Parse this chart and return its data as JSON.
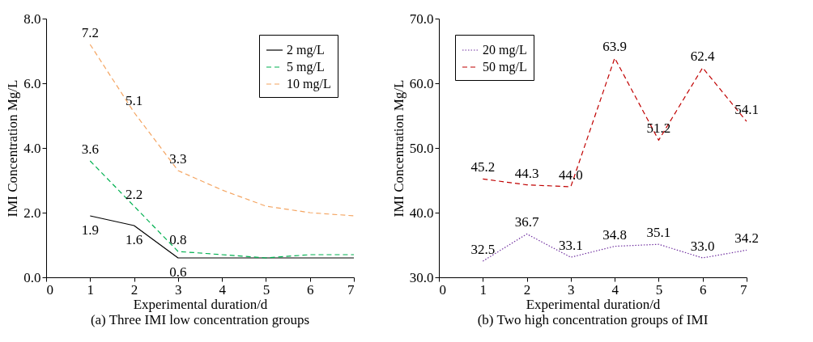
{
  "chart_data": [
    {
      "type": "line",
      "title": "(a) Three IMI low concentration groups",
      "xlabel": "Experimental duration/d",
      "ylabel": "IMI Concentration Mg/L",
      "x": [
        1,
        2,
        3,
        4,
        5,
        6,
        7
      ],
      "series": [
        {
          "name": "2 mg/L",
          "color": "#000000",
          "line_style": "solid",
          "values": [
            1.9,
            1.6,
            0.6,
            0.6,
            0.6,
            0.6,
            0.6
          ],
          "value_labels": [
            "1.9",
            "1.6",
            "0.6",
            null,
            null,
            null,
            null
          ]
        },
        {
          "name": "5 mg/L",
          "color": "#00b050",
          "line_style": "dashed",
          "values": [
            3.6,
            2.2,
            0.8,
            0.7,
            0.6,
            0.7,
            0.7
          ],
          "value_labels": [
            "3.6",
            "2.2",
            "0.8",
            null,
            null,
            null,
            null
          ]
        },
        {
          "name": "10 mg/L",
          "color": "#f4a460",
          "line_style": "dashed",
          "values": [
            7.2,
            5.1,
            3.3,
            2.7,
            2.2,
            2.0,
            1.9
          ],
          "value_labels": [
            "7.2",
            "5.1",
            "3.3",
            null,
            null,
            null,
            null
          ]
        }
      ],
      "xlim": [
        0,
        7
      ],
      "xticks": [
        0,
        1,
        2,
        3,
        4,
        5,
        6,
        7
      ],
      "ylim": [
        0,
        8
      ],
      "yticks": [
        {
          "value": 0,
          "label": "0.0"
        },
        {
          "value": 2,
          "label": "2.0"
        },
        {
          "value": 4,
          "label": "4.0"
        },
        {
          "value": 6,
          "label": "6.0"
        },
        {
          "value": 8,
          "label": "8.0"
        }
      ],
      "legend": "top right",
      "grid": false,
      "marker": "none"
    },
    {
      "type": "line",
      "title": "(b) Two high concentration groups of IMI",
      "xlabel": "Experimental duration/d",
      "ylabel": "IMI Concentration Mg/L",
      "x": [
        1,
        2,
        3,
        4,
        5,
        6,
        7
      ],
      "series": [
        {
          "name": "20 mg/L",
          "color": "#7030a0",
          "line_style": "dotted",
          "values": [
            32.5,
            36.7,
            33.1,
            34.8,
            35.1,
            33.0,
            34.2
          ],
          "value_labels": [
            "32.5",
            "36.7",
            "33.1",
            "34.8",
            "35.1",
            "33.0",
            "34.2"
          ]
        },
        {
          "name": "50 mg/L",
          "color": "#c00000",
          "line_style": "dashed",
          "values": [
            45.2,
            44.3,
            44.0,
            63.9,
            51.2,
            62.4,
            54.1
          ],
          "value_labels": [
            "45.2",
            "44.3",
            "44.0",
            "63.9",
            "51.2",
            "62.4",
            "54.1"
          ]
        }
      ],
      "xlim": [
        0,
        7
      ],
      "xticks": [
        0,
        1,
        2,
        3,
        4,
        5,
        6,
        7
      ],
      "ylim": [
        30,
        70
      ],
      "yticks": [
        {
          "value": 30,
          "label": "30.0"
        },
        {
          "value": 40,
          "label": "40.0"
        },
        {
          "value": 50,
          "label": "50.0"
        },
        {
          "value": 60,
          "label": "60.0"
        },
        {
          "value": 70,
          "label": "70.0"
        }
      ],
      "legend": "top left",
      "grid": false,
      "marker": "none"
    }
  ]
}
